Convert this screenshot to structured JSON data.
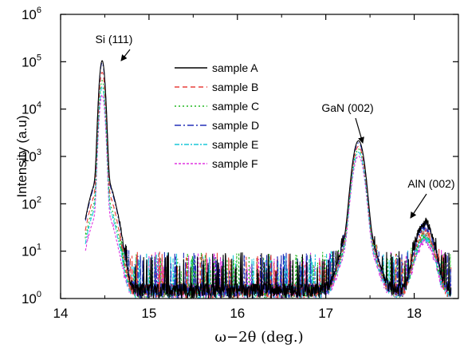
{
  "chart_data": {
    "type": "line",
    "xlabel": "ω−2θ (deg.)",
    "ylabel": "Intensity (a.u)",
    "xlim": [
      14,
      18.5
    ],
    "ylim": [
      1,
      1000000
    ],
    "yscale": "log",
    "xticks": [
      14,
      15,
      16,
      17,
      18
    ],
    "yticks": [
      {
        "value": 1,
        "base": "10",
        "exp": "0"
      },
      {
        "value": 10,
        "base": "10",
        "exp": "1"
      },
      {
        "value": 100,
        "base": "10",
        "exp": "2"
      },
      {
        "value": 1000,
        "base": "10",
        "exp": "3"
      },
      {
        "value": 10000,
        "base": "10",
        "exp": "4"
      },
      {
        "value": 100000,
        "base": "10",
        "exp": "5"
      },
      {
        "value": 1000000,
        "base": "10",
        "exp": "6"
      }
    ],
    "legend_position": "top-center",
    "series": [
      {
        "name": "sample A",
        "color": "#000000",
        "dash": "",
        "si": 105000,
        "gan": 2100,
        "aln": 38
      },
      {
        "name": "sample B",
        "color": "#e8413c",
        "dash": "6,4",
        "si": 60000,
        "gan": 1600,
        "aln": 25
      },
      {
        "name": "sample C",
        "color": "#22b822",
        "dash": "2,3",
        "si": 40000,
        "gan": 1400,
        "aln": 20
      },
      {
        "name": "sample D",
        "color": "#2430b8",
        "dash": "8,3,2,3",
        "si": 95000,
        "gan": 1900,
        "aln": 33
      },
      {
        "name": "sample E",
        "color": "#19c7d9",
        "dash": "6,2,2,2",
        "si": 30000,
        "gan": 1200,
        "aln": 18
      },
      {
        "name": "sample F",
        "color": "#e033e0",
        "dash": "3,2",
        "si": 20000,
        "gan": 1000,
        "aln": 15
      }
    ],
    "peaks": [
      {
        "label": "Si (111)",
        "x": 14.47
      },
      {
        "label": "GaN (002)",
        "x": 17.37
      },
      {
        "label": "AlN (002)",
        "x": 18.12
      }
    ]
  }
}
